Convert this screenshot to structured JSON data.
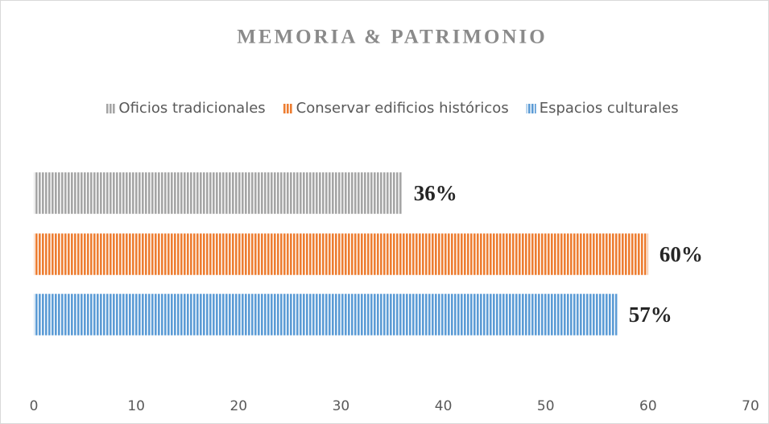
{
  "chart_data": {
    "type": "bar",
    "orientation": "horizontal",
    "title": "MEMORIA & PATRIMONIO",
    "series": [
      {
        "name": "Oficios tradicionales",
        "color": "#a5a5a5",
        "values": [
          36
        ],
        "value_labels": [
          "36%"
        ]
      },
      {
        "name": "Conservar edificios históricos",
        "color": "#ed7d31",
        "values": [
          60
        ],
        "value_labels": [
          "60%"
        ]
      },
      {
        "name": "Espacios culturales",
        "color": "#5b9bd5",
        "values": [
          57
        ],
        "value_labels": [
          "57%"
        ]
      }
    ],
    "xlim": [
      0,
      70
    ],
    "xticks": [
      0,
      10,
      20,
      30,
      40,
      50,
      60,
      70
    ],
    "legend": "top",
    "grid": false
  }
}
